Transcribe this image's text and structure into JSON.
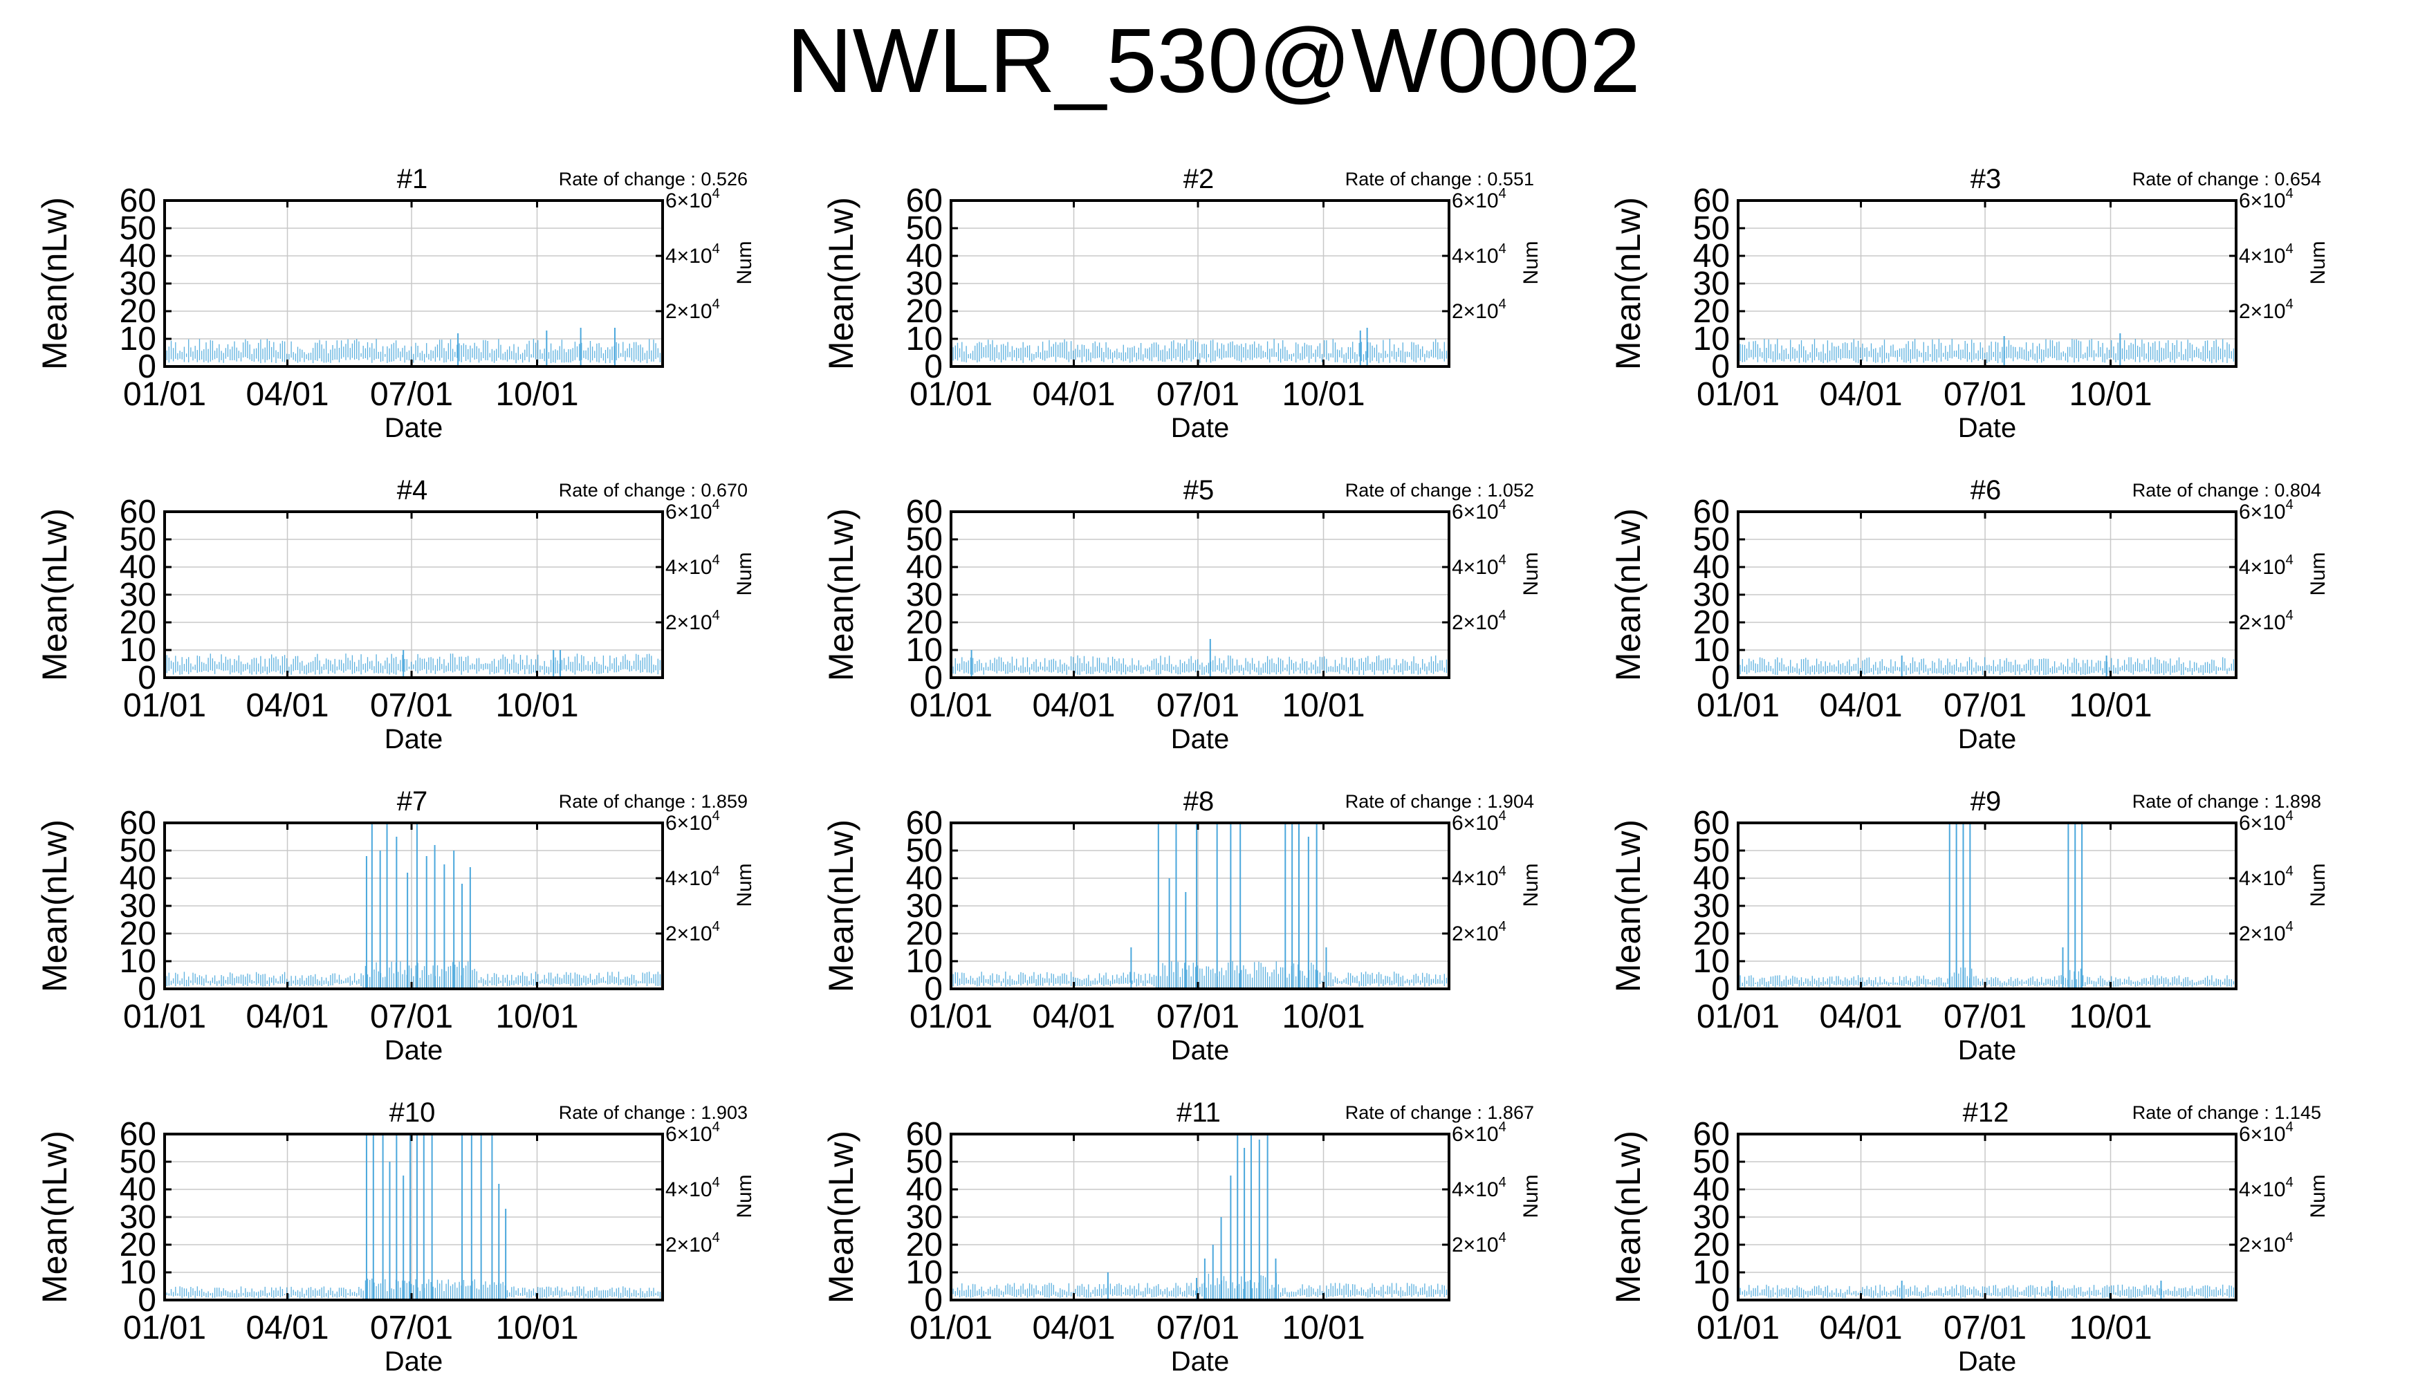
{
  "title": "NWLR_530@W0002",
  "shared_axes": {
    "ylabel": "Mean(nLw)",
    "xlabel": "Date",
    "y2label": "Num",
    "yticks": [
      "0",
      "10",
      "20",
      "30",
      "40",
      "50",
      "60"
    ],
    "xticks": [
      "01/01",
      "04/01",
      "07/01",
      "10/01"
    ],
    "y2ticks": [
      {
        "value": 20000,
        "base": "2×10",
        "exp": "4"
      },
      {
        "value": 40000,
        "base": "4×10",
        "exp": "4"
      },
      {
        "value": 60000,
        "base": "6×10",
        "exp": "4"
      }
    ],
    "rate_prefix": "Rate of change : ",
    "series_color": "#4aa7dc"
  },
  "chart_data": [
    {
      "type": "line",
      "title": "#1",
      "rate": "0.526",
      "ylim": [
        0,
        60
      ],
      "baseline": 8,
      "spikes": [
        [
          215,
          12
        ],
        [
          280,
          13
        ],
        [
          305,
          14
        ],
        [
          330,
          14
        ]
      ]
    },
    {
      "type": "line",
      "title": "#2",
      "rate": "0.551",
      "ylim": [
        0,
        60
      ],
      "baseline": 8,
      "spikes": [
        [
          300,
          13
        ],
        [
          305,
          14
        ]
      ]
    },
    {
      "type": "line",
      "title": "#3",
      "rate": "0.654",
      "ylim": [
        0,
        60
      ],
      "baseline": 8,
      "spikes": [
        [
          195,
          11
        ],
        [
          280,
          12
        ]
      ]
    },
    {
      "type": "line",
      "title": "#4",
      "rate": "0.670",
      "ylim": [
        0,
        60
      ],
      "baseline": 7,
      "spikes": [
        [
          175,
          10
        ],
        [
          285,
          10
        ],
        [
          290,
          10
        ]
      ]
    },
    {
      "type": "line",
      "title": "#5",
      "rate": "1.052",
      "ylim": [
        0,
        60
      ],
      "baseline": 6.5,
      "spikes": [
        [
          15,
          10
        ],
        [
          190,
          14
        ]
      ]
    },
    {
      "type": "line",
      "title": "#6",
      "rate": "0.804",
      "ylim": [
        0,
        60
      ],
      "baseline": 6,
      "spikes": [
        [
          120,
          8
        ],
        [
          270,
          8
        ]
      ]
    },
    {
      "type": "line",
      "title": "#7",
      "rate": "1.859",
      "ylim": [
        0,
        60
      ],
      "baseline": 5,
      "high_periods": [
        [
          145,
          230
        ]
      ],
      "spikes": [
        [
          148,
          48
        ],
        [
          152,
          60
        ],
        [
          158,
          50
        ],
        [
          163,
          60
        ],
        [
          170,
          55
        ],
        [
          178,
          42
        ],
        [
          185,
          60
        ],
        [
          192,
          48
        ],
        [
          198,
          52
        ],
        [
          205,
          45
        ],
        [
          212,
          50
        ],
        [
          218,
          38
        ],
        [
          224,
          44
        ]
      ]
    },
    {
      "type": "line",
      "title": "#8",
      "rate": "1.904",
      "ylim": [
        0,
        60
      ],
      "baseline": 5,
      "high_periods": [
        [
          150,
          270
        ]
      ],
      "spikes": [
        [
          132,
          15
        ],
        [
          152,
          60
        ],
        [
          160,
          40
        ],
        [
          165,
          60
        ],
        [
          172,
          35
        ],
        [
          180,
          60
        ],
        [
          195,
          60
        ],
        [
          205,
          60
        ],
        [
          212,
          60
        ],
        [
          245,
          60
        ],
        [
          250,
          60
        ],
        [
          255,
          60
        ],
        [
          262,
          55
        ],
        [
          268,
          60
        ],
        [
          275,
          15
        ]
      ]
    },
    {
      "type": "line",
      "title": "#9",
      "rate": "1.898",
      "ylim": [
        0,
        60
      ],
      "baseline": 4,
      "high_periods": [
        [
          155,
          172
        ],
        [
          242,
          252
        ]
      ],
      "spikes": [
        [
          155,
          60
        ],
        [
          160,
          60
        ],
        [
          165,
          60
        ],
        [
          170,
          60
        ],
        [
          238,
          15
        ],
        [
          242,
          60
        ],
        [
          247,
          60
        ],
        [
          252,
          60
        ]
      ]
    },
    {
      "type": "line",
      "title": "#10",
      "rate": "1.903",
      "ylim": [
        0,
        60
      ],
      "baseline": 4,
      "high_periods": [
        [
          145,
          250
        ]
      ],
      "spikes": [
        [
          148,
          60
        ],
        [
          153,
          60
        ],
        [
          160,
          60
        ],
        [
          165,
          50
        ],
        [
          170,
          60
        ],
        [
          175,
          45
        ],
        [
          180,
          60
        ],
        [
          185,
          60
        ],
        [
          190,
          60
        ],
        [
          196,
          60
        ],
        [
          218,
          60
        ],
        [
          225,
          60
        ],
        [
          232,
          60
        ],
        [
          240,
          60
        ],
        [
          245,
          42
        ],
        [
          250,
          33
        ]
      ]
    },
    {
      "type": "line",
      "title": "#11",
      "rate": "1.867",
      "ylim": [
        0,
        60
      ],
      "baseline": 5,
      "high_periods": [
        [
          185,
          240
        ]
      ],
      "spikes": [
        [
          115,
          10
        ],
        [
          180,
          8
        ],
        [
          186,
          15
        ],
        [
          192,
          20
        ],
        [
          198,
          30
        ],
        [
          205,
          45
        ],
        [
          210,
          60
        ],
        [
          215,
          55
        ],
        [
          220,
          60
        ],
        [
          226,
          58
        ],
        [
          232,
          60
        ],
        [
          238,
          15
        ]
      ]
    },
    {
      "type": "line",
      "title": "#12",
      "rate": "1.145",
      "ylim": [
        0,
        60
      ],
      "baseline": 4.5,
      "spikes": [
        [
          120,
          7
        ],
        [
          230,
          7
        ],
        [
          310,
          7
        ]
      ]
    }
  ]
}
